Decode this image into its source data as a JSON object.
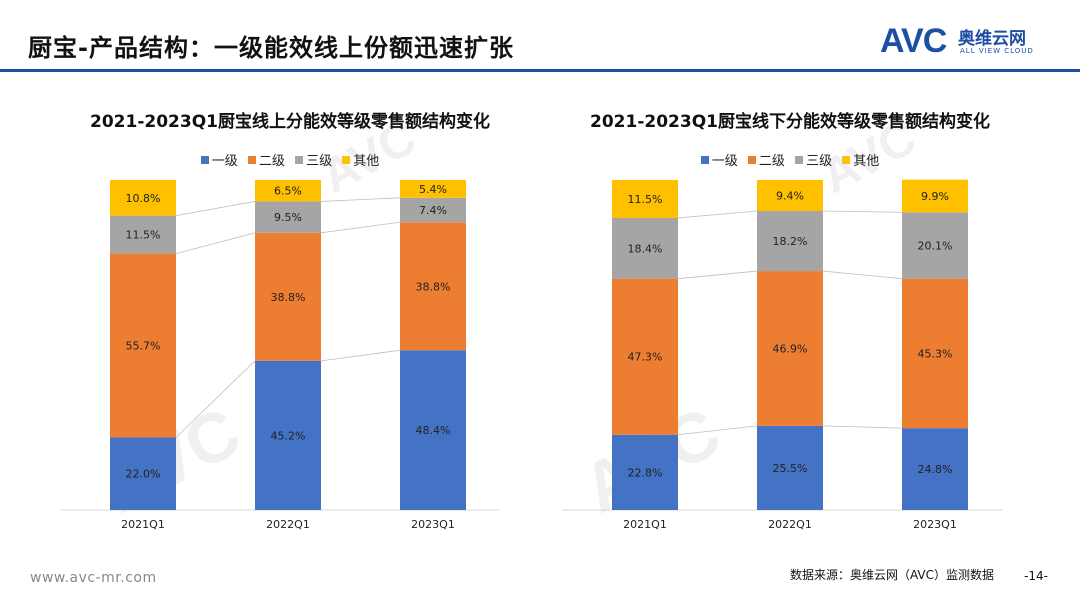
{
  "page": {
    "title": "厨宝-产品结构：一级能效线上份额迅速扩张",
    "logo_mark": "AVC",
    "logo_cn": "奥维云网",
    "logo_en": "ALL VIEW CLOUD",
    "footer_url": "www.avc-mr.com",
    "footer_source": "数据来源：奥维云网（AVC）监测数据",
    "page_number": "-14-"
  },
  "colors": {
    "一级": "#4472c4",
    "二级": "#ed7d31",
    "三级": "#a5a5a5",
    "其他": "#ffc000",
    "brand": "#1d4fa3"
  },
  "chart_data": [
    {
      "type": "bar",
      "stacked": true,
      "title": "2021-2023Q1厨宝线上分能效等级零售额结构变化",
      "categories": [
        "2021Q1",
        "2022Q1",
        "2023Q1"
      ],
      "series": [
        {
          "name": "一级",
          "values": [
            22.0,
            45.2,
            48.4
          ],
          "labels": [
            "22.0%",
            "45.2%",
            "48.4%"
          ]
        },
        {
          "name": "二级",
          "values": [
            55.7,
            38.8,
            38.8
          ],
          "labels": [
            "55.7%",
            "38.8%",
            "38.8%"
          ]
        },
        {
          "name": "三级",
          "values": [
            11.5,
            9.5,
            7.4
          ],
          "labels": [
            "11.5%",
            "9.5%",
            "7.4%"
          ]
        },
        {
          "name": "其他",
          "values": [
            10.8,
            6.5,
            5.4
          ],
          "labels": [
            "10.8%",
            "6.5%",
            "5.4%"
          ]
        }
      ],
      "legend": [
        "一级",
        "二级",
        "三级",
        "其他"
      ],
      "ylim": [
        0,
        100
      ],
      "connector_lines": true
    },
    {
      "type": "bar",
      "stacked": true,
      "title": "2021-2023Q1厨宝线下分能效等级零售额结构变化",
      "categories": [
        "2021Q1",
        "2022Q1",
        "2023Q1"
      ],
      "series": [
        {
          "name": "一级",
          "values": [
            22.8,
            25.5,
            24.8
          ],
          "labels": [
            "22.8%",
            "25.5%",
            "24.8%"
          ]
        },
        {
          "name": "二级",
          "values": [
            47.3,
            46.9,
            45.3
          ],
          "labels": [
            "47.3%",
            "46.9%",
            "45.3%"
          ]
        },
        {
          "name": "三级",
          "values": [
            18.4,
            18.2,
            20.1
          ],
          "labels": [
            "18.4%",
            "18.2%",
            "20.1%"
          ]
        },
        {
          "name": "其他",
          "values": [
            11.5,
            9.4,
            9.9
          ],
          "labels": [
            "11.5%",
            "9.4%",
            "9.9%"
          ]
        }
      ],
      "legend": [
        "一级",
        "二级",
        "三级",
        "其他"
      ],
      "ylim": [
        0,
        100
      ],
      "connector_lines": true
    }
  ]
}
